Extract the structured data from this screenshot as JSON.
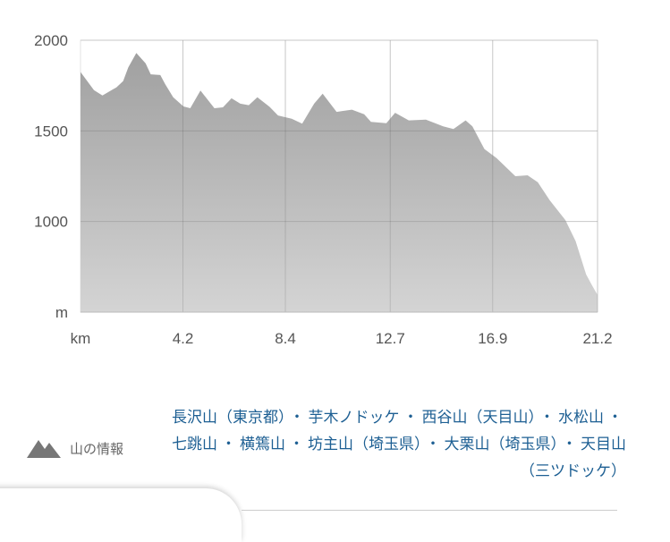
{
  "chart_data": {
    "type": "area",
    "xlabel": "km",
    "ylabel": "m",
    "xlim": [
      0,
      21.2
    ],
    "ylim": [
      500,
      2000
    ],
    "x_ticks": [
      "4.2",
      "8.4",
      "12.7",
      "16.9",
      "21.2"
    ],
    "y_ticks": [
      "2000",
      "1500",
      "1000"
    ],
    "grid": true,
    "fill_colors": [
      "#a0a0a0",
      "#d4d4d4"
    ],
    "x": [
      0,
      0.55,
      0.9,
      1.47,
      1.75,
      1.96,
      2.29,
      2.67,
      2.88,
      3.27,
      3.47,
      3.8,
      4.22,
      4.5,
      4.92,
      5.49,
      5.84,
      6.19,
      6.55,
      6.9,
      7.25,
      7.75,
      8.1,
      8.66,
      9.09,
      9.58,
      9.93,
      10.5,
      11.13,
      11.63,
      11.91,
      12.54,
      12.9,
      13.46,
      14.16,
      14.87,
      15.29,
      15.79,
      16.07,
      16.56,
      17.06,
      17.83,
      18.33,
      18.75,
      19.24,
      19.88,
      20.3,
      20.73,
      21.0,
      21.2
    ],
    "y": [
      1825,
      1725,
      1695,
      1740,
      1775,
      1850,
      1930,
      1872,
      1812,
      1808,
      1758,
      1685,
      1635,
      1625,
      1722,
      1625,
      1630,
      1680,
      1650,
      1642,
      1685,
      1633,
      1585,
      1567,
      1540,
      1650,
      1705,
      1605,
      1617,
      1592,
      1550,
      1542,
      1600,
      1558,
      1562,
      1525,
      1510,
      1558,
      1525,
      1400,
      1350,
      1250,
      1255,
      1217,
      1117,
      1008,
      892,
      708,
      642,
      595
    ]
  },
  "mountain_info": {
    "icon": "mountain-icon",
    "label": "山の情報",
    "peaks": [
      "長沢山（東京都）",
      "芋木ノドッケ",
      "西谷山（天目山）",
      "水松山",
      "七跳山",
      "横篶山",
      "坊主山（埼玉県）",
      "大栗山（埼玉県）",
      "天目山（三ツドッケ）"
    ],
    "separator": "・",
    "link_color": "#1d5f93"
  }
}
